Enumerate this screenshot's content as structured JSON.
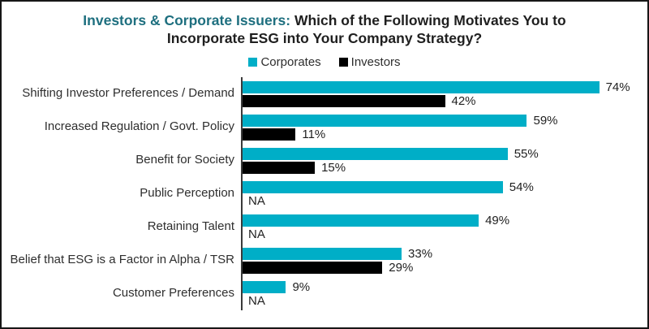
{
  "title": {
    "highlight": "Investors & Corporate Issuers:",
    "line1_rest": " Which of the Following Motivates You to",
    "line2": "Incorporate ESG into Your Company Strategy?"
  },
  "legend": [
    {
      "label": "Corporates",
      "color": "#00AEC7"
    },
    {
      "label": "Investors",
      "color": "#000000"
    }
  ],
  "colors": {
    "title_highlight": "#1E6F7F",
    "corporates_bar": "#00AEC7",
    "investors_bar": "#000000",
    "axis_line": "#3a3a3a",
    "frame_border": "#161616"
  },
  "chart_data": {
    "type": "bar",
    "orientation": "horizontal",
    "title": "Investors & Corporate Issuers: Which of the Following Motivates You to Incorporate ESG into Your Company Strategy?",
    "categories": [
      "Shifting Investor Preferences / Demand",
      "Increased Regulation / Govt. Policy",
      "Benefit for Society",
      "Public Perception",
      "Retaining Talent",
      "Belief that ESG is a Factor in Alpha / TSR",
      "Customer Preferences"
    ],
    "series": [
      {
        "name": "Corporates",
        "color": "#00AEC7",
        "values": [
          74,
          59,
          55,
          54,
          49,
          33,
          9
        ],
        "labels": [
          "74%",
          "59%",
          "55%",
          "54%",
          "49%",
          "33%",
          "9%"
        ]
      },
      {
        "name": "Investors",
        "color": "#000000",
        "values": [
          42,
          11,
          15,
          null,
          null,
          29,
          null
        ],
        "labels": [
          "42%",
          "11%",
          "15%",
          "NA",
          "NA",
          "29%",
          "NA"
        ]
      }
    ],
    "xlim": [
      0,
      84
    ],
    "value_suffix": "%",
    "na_label": "NA",
    "legend_position": "top",
    "grid": false
  }
}
